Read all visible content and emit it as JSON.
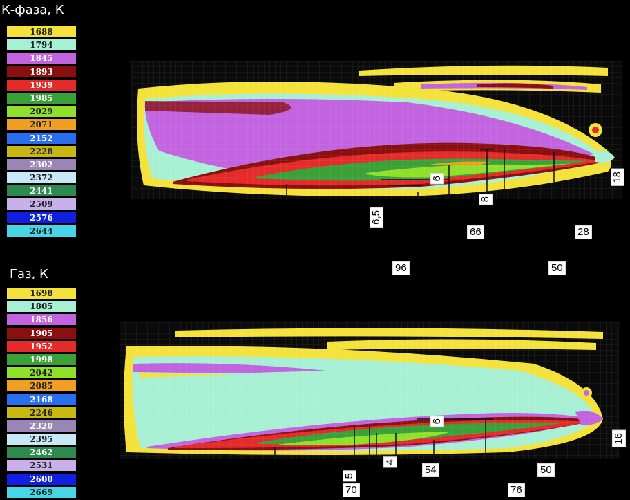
{
  "legends": [
    {
      "title": "К-фаза, К",
      "entries": [
        {
          "value": "1688",
          "color": "#f4e23a",
          "text": "#222"
        },
        {
          "value": "1794",
          "color": "#a8f0d4",
          "text": "#222"
        },
        {
          "value": "1845",
          "color": "#c264e0",
          "text": "#fff"
        },
        {
          "value": "1893",
          "color": "#8a1010",
          "text": "#fff"
        },
        {
          "value": "1939",
          "color": "#e52a2a",
          "text": "#fff"
        },
        {
          "value": "1985",
          "color": "#3aa038",
          "text": "#fff"
        },
        {
          "value": "2029",
          "color": "#8fe02a",
          "text": "#222"
        },
        {
          "value": "2071",
          "color": "#f0a020",
          "text": "#222"
        },
        {
          "value": "2152",
          "color": "#2a6ef0",
          "text": "#fff"
        },
        {
          "value": "2228",
          "color": "#c9b812",
          "text": "#222"
        },
        {
          "value": "2302",
          "color": "#9a86b4",
          "text": "#fff"
        },
        {
          "value": "2372",
          "color": "#c8e8f8",
          "text": "#222"
        },
        {
          "value": "2441",
          "color": "#2c8a50",
          "text": "#fff"
        },
        {
          "value": "2509",
          "color": "#c8b0e8",
          "text": "#222"
        },
        {
          "value": "2576",
          "color": "#1020e0",
          "text": "#fff"
        },
        {
          "value": "2644",
          "color": "#48d6e6",
          "text": "#222"
        }
      ]
    },
    {
      "title": "Газ, К",
      "entries": [
        {
          "value": "1698",
          "color": "#f4e23a",
          "text": "#222"
        },
        {
          "value": "1805",
          "color": "#a8f0d4",
          "text": "#222"
        },
        {
          "value": "1856",
          "color": "#c264e0",
          "text": "#fff"
        },
        {
          "value": "1905",
          "color": "#8a1010",
          "text": "#fff"
        },
        {
          "value": "1952",
          "color": "#e52a2a",
          "text": "#fff"
        },
        {
          "value": "1998",
          "color": "#3aa038",
          "text": "#fff"
        },
        {
          "value": "2042",
          "color": "#8fe02a",
          "text": "#222"
        },
        {
          "value": "2085",
          "color": "#f0a020",
          "text": "#222"
        },
        {
          "value": "2168",
          "color": "#2a6ef0",
          "text": "#fff"
        },
        {
          "value": "2246",
          "color": "#c9b812",
          "text": "#222"
        },
        {
          "value": "2320",
          "color": "#9a86b4",
          "text": "#fff"
        },
        {
          "value": "2395",
          "color": "#c8e8f8",
          "text": "#222"
        },
        {
          "value": "2462",
          "color": "#2c8a50",
          "text": "#fff"
        },
        {
          "value": "2531",
          "color": "#c8b0e8",
          "text": "#222"
        },
        {
          "value": "2600",
          "color": "#1020e0",
          "text": "#fff"
        },
        {
          "value": "2669",
          "color": "#48d6e6",
          "text": "#222"
        }
      ]
    }
  ],
  "dimension_labels": {
    "top": {
      "d6_5": "6,5",
      "d6": "6",
      "d8": "8",
      "d66": "66",
      "d28": "28",
      "d96": "96",
      "d50": "50",
      "d18": "18"
    },
    "bottom": {
      "d6": "6",
      "d16": "16",
      "d5": "5",
      "d4": "4",
      "d54": "54",
      "d50": "50",
      "d70": "70",
      "d76": "76"
    }
  }
}
